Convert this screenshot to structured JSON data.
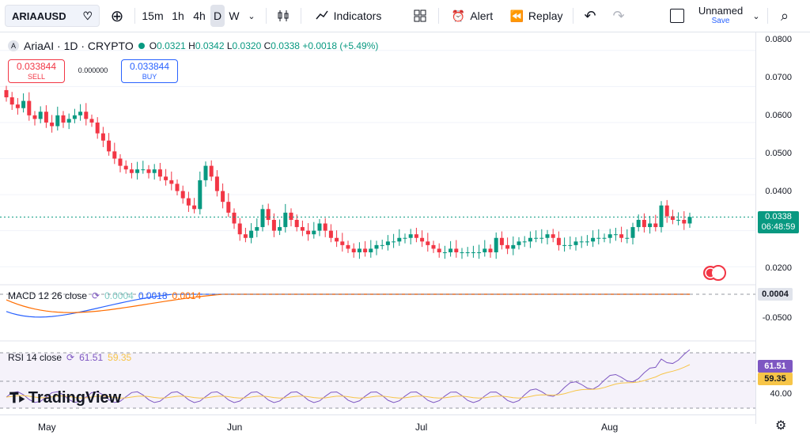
{
  "toolbar": {
    "symbol": "ARIAAUSD",
    "intervals": [
      "15m",
      "1h",
      "4h",
      "D",
      "W"
    ],
    "indicators_label": "Indicators",
    "alert_label": "Alert",
    "replay_label": "Replay",
    "layout_name": "Unnamed",
    "layout_save": "Save"
  },
  "legend": {
    "title": "AriaAI · 1D · CRYPTO",
    "o_label": "O",
    "o": "0.0321",
    "h_label": "H",
    "h": "0.0342",
    "l_label": "L",
    "l": "0.0320",
    "c_label": "C",
    "c": "0.0338",
    "change": "+0.0018 (+5.49%)"
  },
  "trade": {
    "sell_price": "0.033844",
    "sell_label": "SELL",
    "spread": "0.000000",
    "buy_price": "0.033844",
    "buy_label": "BUY"
  },
  "price_axis": [
    "0.0800",
    "0.0700",
    "0.0600",
    "0.0500",
    "0.0400",
    "0.0200"
  ],
  "current_price": {
    "value": "0.0338",
    "countdown": "06:48:59",
    "color": "#089981"
  },
  "macd": {
    "label": "MACD 12 26 close",
    "hist": "0.0004",
    "macd": "0.0018",
    "signal": "0.0014",
    "axis_tag": "0.0004",
    "axis_low": "-0.0500"
  },
  "rsi": {
    "label": "RSI 14 close",
    "rsi": "61.51",
    "ma": "59.35",
    "axis_tag_rsi": "61.51",
    "axis_tag_ma": "59.35",
    "axis_40": "40.00"
  },
  "dates": [
    "May",
    "Jun",
    "Jul",
    "Aug"
  ],
  "logo_text": "TradingView",
  "colors": {
    "up": "#089981",
    "down": "#f23645",
    "macd": "#2962ff",
    "signal": "#ff6d00",
    "rsi": "#7e57c2",
    "rsi_ma": "#f7c548"
  },
  "chart_data": {
    "type": "candlestick",
    "closes": [
      0.067,
      0.065,
      0.064,
      0.066,
      0.062,
      0.061,
      0.063,
      0.06,
      0.059,
      0.062,
      0.06,
      0.061,
      0.062,
      0.063,
      0.061,
      0.06,
      0.057,
      0.055,
      0.052,
      0.05,
      0.048,
      0.047,
      0.046,
      0.047,
      0.047,
      0.046,
      0.047,
      0.045,
      0.044,
      0.043,
      0.041,
      0.039,
      0.037,
      0.036,
      0.044,
      0.048,
      0.045,
      0.041,
      0.038,
      0.035,
      0.032,
      0.029,
      0.028,
      0.03,
      0.031,
      0.036,
      0.033,
      0.03,
      0.031,
      0.035,
      0.033,
      0.031,
      0.03,
      0.029,
      0.03,
      0.032,
      0.03,
      0.028,
      0.027,
      0.026,
      0.025,
      0.024,
      0.025,
      0.024,
      0.025,
      0.026,
      0.026,
      0.027,
      0.027,
      0.028,
      0.028,
      0.029,
      0.028,
      0.027,
      0.026,
      0.025,
      0.024,
      0.024,
      0.025,
      0.024,
      0.024,
      0.024,
      0.024,
      0.024,
      0.025,
      0.024,
      0.028,
      0.026,
      0.025,
      0.026,
      0.027,
      0.027,
      0.028,
      0.028,
      0.028,
      0.029,
      0.028,
      0.026,
      0.026,
      0.026,
      0.027,
      0.027,
      0.027,
      0.028,
      0.028,
      0.028,
      0.029,
      0.029,
      0.028,
      0.028,
      0.031,
      0.033,
      0.031,
      0.032,
      0.031,
      0.037,
      0.034,
      0.033,
      0.033,
      0.032,
      0.0338
    ],
    "ylim": [
      0.015,
      0.085
    ]
  }
}
